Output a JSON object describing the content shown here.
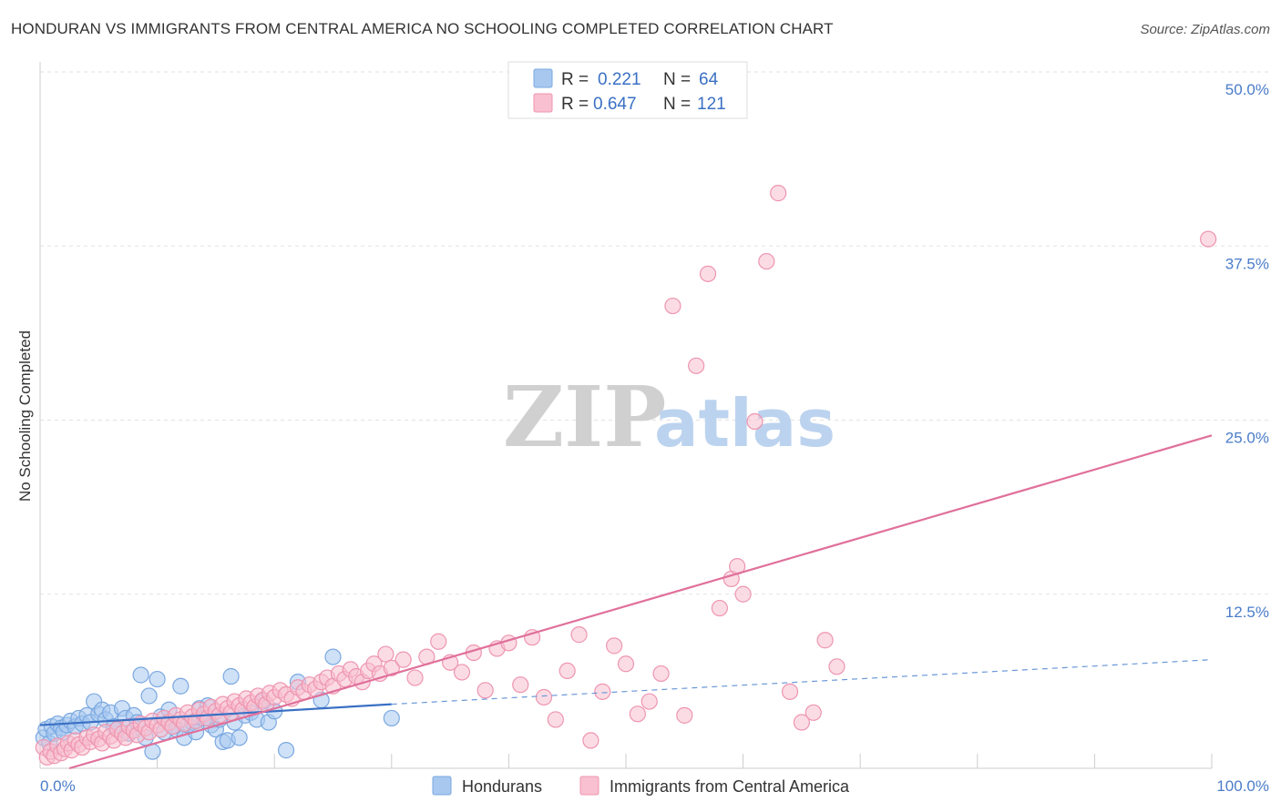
{
  "title": "HONDURAN VS IMMIGRANTS FROM CENTRAL AMERICA NO SCHOOLING COMPLETED CORRELATION CHART",
  "source": "Source: ZipAtlas.com",
  "watermark": {
    "zip": "ZIP",
    "atlas": "atlas"
  },
  "legend": {
    "rows": [
      {
        "r_label": "R = ",
        "r_value": "0.221",
        "n_label": "N = ",
        "n_value": "64",
        "color": "#a8c8f0",
        "stroke": "#7aa8e0"
      },
      {
        "r_label": "R = ",
        "r_value": "0.647",
        "n_label": "N = ",
        "n_value": "121",
        "color": "#f8c0d0",
        "stroke": "#ee95b0"
      }
    ]
  },
  "bottom_legend": [
    "Hondurans",
    "Immigrants from Central America"
  ],
  "chart_data": {
    "type": "scatter",
    "title": "HONDURAN VS IMMIGRANTS FROM CENTRAL AMERICA NO SCHOOLING COMPLETED CORRELATION CHART",
    "xlabel": "",
    "ylabel": "No Schooling Completed",
    "xlim": [
      0,
      100
    ],
    "ylim": [
      0,
      50
    ],
    "x_tick_labels": [
      "0.0%",
      "100.0%"
    ],
    "y_ticks": [
      12.5,
      25.0,
      37.5,
      50.0
    ],
    "y_tick_labels": [
      "12.5%",
      "25.0%",
      "37.5%",
      "50.0%"
    ],
    "grid": true,
    "legend_position": "top-center",
    "series": [
      {
        "name": "Hondurans",
        "color": "#7aa8e0",
        "fill": "#a8c8f0",
        "trend": {
          "x0": 0,
          "y0": 3.1,
          "x1": 30,
          "y1": 4.6,
          "dash_x1": 100,
          "dash_y1": 7.8
        },
        "points": [
          [
            0.3,
            2.2
          ],
          [
            0.5,
            2.8
          ],
          [
            0.8,
            1.8
          ],
          [
            1.0,
            3.0
          ],
          [
            1.2,
            2.5
          ],
          [
            1.5,
            3.2
          ],
          [
            1.8,
            2.9
          ],
          [
            2.0,
            2.6
          ],
          [
            2.3,
            3.1
          ],
          [
            2.6,
            3.4
          ],
          [
            3.0,
            3.0
          ],
          [
            3.3,
            3.6
          ],
          [
            3.6,
            3.2
          ],
          [
            4.0,
            3.8
          ],
          [
            4.3,
            3.3
          ],
          [
            4.6,
            4.8
          ],
          [
            5.0,
            3.9
          ],
          [
            5.3,
            4.2
          ],
          [
            5.6,
            3.5
          ],
          [
            6.0,
            4.0
          ],
          [
            6.3,
            3.0
          ],
          [
            6.6,
            2.8
          ],
          [
            7.0,
            4.3
          ],
          [
            7.3,
            3.6
          ],
          [
            7.6,
            2.5
          ],
          [
            8.0,
            3.8
          ],
          [
            8.3,
            3.3
          ],
          [
            8.6,
            6.7
          ],
          [
            9.0,
            2.2
          ],
          [
            9.3,
            5.2
          ],
          [
            9.6,
            1.2
          ],
          [
            10.0,
            6.4
          ],
          [
            10.3,
            3.7
          ],
          [
            10.6,
            2.6
          ],
          [
            11.0,
            4.2
          ],
          [
            11.3,
            3.0
          ],
          [
            11.6,
            2.8
          ],
          [
            12.0,
            5.9
          ],
          [
            12.3,
            2.2
          ],
          [
            12.6,
            3.1
          ],
          [
            13.0,
            3.3
          ],
          [
            13.3,
            2.6
          ],
          [
            13.6,
            4.3
          ],
          [
            14.0,
            3.6
          ],
          [
            14.3,
            4.5
          ],
          [
            14.6,
            3.1
          ],
          [
            15.0,
            2.8
          ],
          [
            15.3,
            3.5
          ],
          [
            15.6,
            1.9
          ],
          [
            16.0,
            2.0
          ],
          [
            16.3,
            6.6
          ],
          [
            16.6,
            3.3
          ],
          [
            17.0,
            2.2
          ],
          [
            17.5,
            3.8
          ],
          [
            18.0,
            4.0
          ],
          [
            18.5,
            3.5
          ],
          [
            19.0,
            4.8
          ],
          [
            19.5,
            3.3
          ],
          [
            20.0,
            4.1
          ],
          [
            21.0,
            1.3
          ],
          [
            22.0,
            6.2
          ],
          [
            24.0,
            4.9
          ],
          [
            25.0,
            8.0
          ],
          [
            30.0,
            3.6
          ]
        ]
      },
      {
        "name": "Immigrants from Central America",
        "color": "#ee95b0",
        "fill": "#f8c0d0",
        "trend": {
          "x0": 2.5,
          "y0": 0,
          "x1": 100,
          "y1": 23.9
        },
        "points": [
          [
            0.3,
            1.5
          ],
          [
            0.6,
            0.8
          ],
          [
            0.9,
            1.2
          ],
          [
            1.2,
            0.9
          ],
          [
            1.5,
            1.6
          ],
          [
            1.8,
            1.1
          ],
          [
            2.1,
            1.4
          ],
          [
            2.4,
            1.8
          ],
          [
            2.7,
            1.3
          ],
          [
            3.0,
            2.0
          ],
          [
            3.3,
            1.7
          ],
          [
            3.6,
            1.5
          ],
          [
            4.0,
            2.2
          ],
          [
            4.3,
            1.9
          ],
          [
            4.6,
            2.4
          ],
          [
            5.0,
            2.1
          ],
          [
            5.3,
            1.8
          ],
          [
            5.6,
            2.6
          ],
          [
            6.0,
            2.3
          ],
          [
            6.3,
            2.0
          ],
          [
            6.6,
            2.8
          ],
          [
            7.0,
            2.5
          ],
          [
            7.3,
            2.2
          ],
          [
            7.6,
            3.0
          ],
          [
            8.0,
            2.7
          ],
          [
            8.3,
            2.4
          ],
          [
            8.6,
            3.2
          ],
          [
            9.0,
            2.9
          ],
          [
            9.3,
            2.6
          ],
          [
            9.6,
            3.4
          ],
          [
            10.0,
            3.1
          ],
          [
            10.3,
            2.8
          ],
          [
            10.6,
            3.6
          ],
          [
            11.0,
            3.3
          ],
          [
            11.3,
            3.0
          ],
          [
            11.6,
            3.8
          ],
          [
            12.0,
            3.5
          ],
          [
            12.3,
            3.2
          ],
          [
            12.6,
            4.0
          ],
          [
            13.0,
            3.7
          ],
          [
            13.3,
            3.4
          ],
          [
            13.6,
            4.2
          ],
          [
            14.0,
            3.9
          ],
          [
            14.3,
            3.6
          ],
          [
            14.6,
            4.4
          ],
          [
            15.0,
            4.1
          ],
          [
            15.3,
            3.8
          ],
          [
            15.6,
            4.6
          ],
          [
            16.0,
            4.3
          ],
          [
            16.3,
            4.0
          ],
          [
            16.6,
            4.8
          ],
          [
            17.0,
            4.5
          ],
          [
            17.3,
            4.2
          ],
          [
            17.6,
            5.0
          ],
          [
            18.0,
            4.7
          ],
          [
            18.3,
            4.4
          ],
          [
            18.6,
            5.2
          ],
          [
            19.0,
            4.9
          ],
          [
            19.3,
            4.6
          ],
          [
            19.6,
            5.4
          ],
          [
            20.0,
            5.1
          ],
          [
            20.5,
            5.6
          ],
          [
            21.0,
            5.3
          ],
          [
            21.5,
            5.0
          ],
          [
            22.0,
            5.8
          ],
          [
            22.5,
            5.5
          ],
          [
            23.0,
            6.0
          ],
          [
            23.5,
            5.7
          ],
          [
            24.0,
            6.2
          ],
          [
            24.5,
            6.5
          ],
          [
            25.0,
            5.9
          ],
          [
            25.5,
            6.8
          ],
          [
            26.0,
            6.4
          ],
          [
            26.5,
            7.1
          ],
          [
            27.0,
            6.6
          ],
          [
            27.5,
            6.2
          ],
          [
            28.0,
            7.0
          ],
          [
            28.5,
            7.5
          ],
          [
            29.0,
            6.8
          ],
          [
            29.5,
            8.2
          ],
          [
            30.0,
            7.2
          ],
          [
            31.0,
            7.8
          ],
          [
            32.0,
            6.5
          ],
          [
            33.0,
            8.0
          ],
          [
            34.0,
            9.1
          ],
          [
            35.0,
            7.6
          ],
          [
            36.0,
            6.9
          ],
          [
            37.0,
            8.3
          ],
          [
            38.0,
            5.6
          ],
          [
            39.0,
            8.6
          ],
          [
            40.0,
            9.0
          ],
          [
            41.0,
            6.0
          ],
          [
            42.0,
            9.4
          ],
          [
            43.0,
            5.1
          ],
          [
            44.0,
            3.5
          ],
          [
            45.0,
            7.0
          ],
          [
            46.0,
            9.6
          ],
          [
            47.0,
            2.0
          ],
          [
            48.0,
            5.5
          ],
          [
            49.0,
            8.8
          ],
          [
            50.0,
            7.5
          ],
          [
            51.0,
            3.9
          ],
          [
            52.0,
            4.8
          ],
          [
            53.0,
            6.8
          ],
          [
            54.0,
            33.2
          ],
          [
            55.0,
            3.8
          ],
          [
            56.0,
            28.9
          ],
          [
            57.0,
            35.5
          ],
          [
            58.0,
            11.5
          ],
          [
            59.0,
            13.6
          ],
          [
            59.5,
            14.5
          ],
          [
            60.0,
            12.5
          ],
          [
            61.0,
            24.9
          ],
          [
            62.0,
            36.4
          ],
          [
            63.0,
            41.3
          ],
          [
            64.0,
            5.5
          ],
          [
            65.0,
            3.3
          ],
          [
            66.0,
            4.0
          ],
          [
            67.0,
            9.2
          ],
          [
            68.0,
            7.3
          ],
          [
            99.7,
            38.0
          ]
        ]
      }
    ]
  }
}
